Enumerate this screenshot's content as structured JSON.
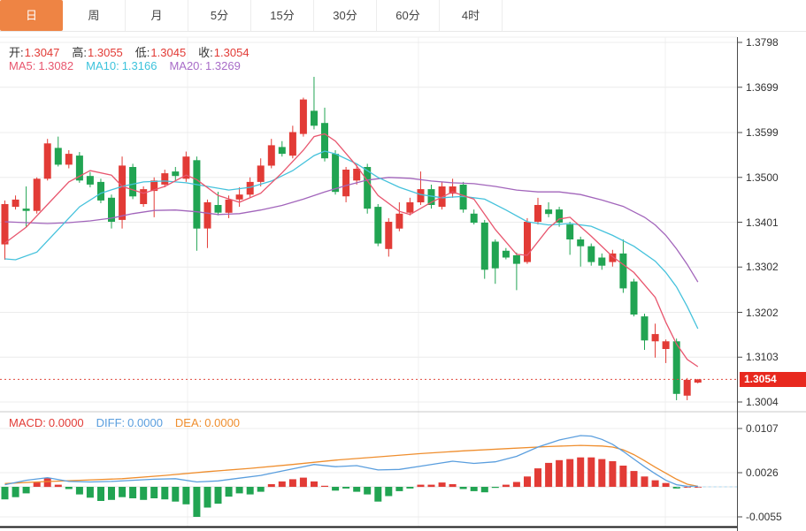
{
  "tabs": {
    "items": [
      {
        "key": "daily",
        "label": "日",
        "active": true
      },
      {
        "key": "weekly",
        "label": "周",
        "active": false
      },
      {
        "key": "monthly",
        "label": "月",
        "active": false
      },
      {
        "key": "5min",
        "label": "5分",
        "active": false
      },
      {
        "key": "15min",
        "label": "15分",
        "active": false
      },
      {
        "key": "30min",
        "label": "30分",
        "active": false
      },
      {
        "key": "60min",
        "label": "60分",
        "active": false
      },
      {
        "key": "4hour",
        "label": "4时",
        "active": false
      }
    ]
  },
  "legend_ohlc": {
    "items": [
      {
        "label": "开:",
        "value": "1.3047"
      },
      {
        "label": "高:",
        "value": "1.3055"
      },
      {
        "label": "低:",
        "value": "1.3045"
      },
      {
        "label": "收:",
        "value": "1.3054"
      }
    ]
  },
  "legend_ma": {
    "items": [
      {
        "label": "MA5:",
        "value": "1.3082",
        "color": "#e8566e"
      },
      {
        "label": "MA10:",
        "value": "1.3166",
        "color": "#3cc3dc"
      },
      {
        "label": "MA20:",
        "value": "1.3269",
        "color": "#a86cc8"
      }
    ]
  },
  "legend_macd": {
    "items": [
      {
        "label": "MACD:",
        "value": "0.0000",
        "color": "#e23b36"
      },
      {
        "label": "DIFF:",
        "value": "0.0000",
        "color": "#5a9ede"
      },
      {
        "label": "DEA:",
        "value": "0.0000",
        "color": "#ef8e2e"
      }
    ]
  },
  "price_marker": {
    "value": "1.3054",
    "price": 1.3054
  },
  "colors": {
    "up": "#e23b36",
    "down": "#21a452",
    "tab_active_bg": "#ee8444",
    "marker_bg": "#e8281e",
    "dotted_line": "#e0493f",
    "grid": "#ececec",
    "grid_vertical": "#f1f1f1",
    "axis_line": "#4a4a4a",
    "bottom_line": "#1a1a1a",
    "ma5": "#e8566e",
    "ma10": "#45c2dc",
    "ma20": "#a265bb",
    "diff": "#5a9ede",
    "dea": "#ef8e2e",
    "zero_dash": "#a9d7ef",
    "separator": "#c9c9c9"
  },
  "chart_data": {
    "type": "candlestick+macd",
    "title": "",
    "main_panel": {
      "y_axis_labels": [
        "1.3798",
        "1.3699",
        "1.3599",
        "1.3500",
        "1.3401",
        "1.3302",
        "1.3202",
        "1.3103",
        "1.3004"
      ],
      "axis_map": {
        "p_top": 1.3798,
        "y_top": 48,
        "p_bot": 1.3004,
        "y_bot": 455
      },
      "ylim": [
        1.2985,
        1.381
      ],
      "grid": true,
      "vertical_gridlines_x": [
        212,
        473,
        752
      ],
      "current_price": 1.3054,
      "candles_ohlc": [
        [
          1.3352,
          1.3449,
          1.3318,
          1.3441
        ],
        [
          1.3435,
          1.346,
          1.3429,
          1.3451
        ],
        [
          1.3431,
          1.348,
          1.3391,
          1.3426
        ],
        [
          1.3426,
          1.35,
          1.342,
          1.3497
        ],
        [
          1.3497,
          1.3585,
          1.3493,
          1.3575
        ],
        [
          1.3565,
          1.359,
          1.3524,
          1.3528
        ],
        [
          1.3528,
          1.356,
          1.352,
          1.3552
        ],
        [
          1.3548,
          1.3556,
          1.3488,
          1.3493
        ],
        [
          1.3503,
          1.3512,
          1.3478,
          1.3484
        ],
        [
          1.349,
          1.3497,
          1.3443,
          1.3449
        ],
        [
          1.3455,
          1.3462,
          1.3387,
          1.3402
        ],
        [
          1.3406,
          1.3546,
          1.3387,
          1.3526
        ],
        [
          1.3523,
          1.353,
          1.3452,
          1.3458
        ],
        [
          1.3441,
          1.348,
          1.3435,
          1.3474
        ],
        [
          1.347,
          1.35,
          1.3412,
          1.3493
        ],
        [
          1.3484,
          1.3517,
          1.3478,
          1.3509
        ],
        [
          1.3513,
          1.3523,
          1.3493,
          1.3503
        ],
        [
          1.3497,
          1.3557,
          1.349,
          1.3546
        ],
        [
          1.3538,
          1.3546,
          1.3338,
          1.3387
        ],
        [
          1.3387,
          1.3451,
          1.3344,
          1.3445
        ],
        [
          1.3439,
          1.3468,
          1.3416,
          1.3422
        ],
        [
          1.3422,
          1.346,
          1.341,
          1.3451
        ],
        [
          1.3451,
          1.3478,
          1.3435,
          1.3462
        ],
        [
          1.3462,
          1.35,
          1.3455,
          1.349
        ],
        [
          1.349,
          1.3542,
          1.348,
          1.3526
        ],
        [
          1.3526,
          1.3585,
          1.352,
          1.3571
        ],
        [
          1.3567,
          1.358,
          1.3546,
          1.3552
        ],
        [
          1.3548,
          1.3614,
          1.3542,
          1.36
        ],
        [
          1.3596,
          1.3676,
          1.359,
          1.3672
        ],
        [
          1.3647,
          1.3722,
          1.3606,
          1.3614
        ],
        [
          1.362,
          1.3654,
          1.3535,
          1.3542
        ],
        [
          1.3552,
          1.356,
          1.3462,
          1.3468
        ],
        [
          1.3458,
          1.3523,
          1.3445,
          1.3517
        ],
        [
          1.3493,
          1.3528,
          1.3484,
          1.3519
        ],
        [
          1.3523,
          1.353,
          1.342,
          1.3431
        ],
        [
          1.3435,
          1.3441,
          1.3348,
          1.3354
        ],
        [
          1.3342,
          1.341,
          1.3325,
          1.3402
        ],
        [
          1.3387,
          1.3445,
          1.3381,
          1.342
        ],
        [
          1.3422,
          1.3455,
          1.3416,
          1.3445
        ],
        [
          1.3445,
          1.3513,
          1.3439,
          1.3474
        ],
        [
          1.3474,
          1.3484,
          1.3431,
          1.3439
        ],
        [
          1.3435,
          1.349,
          1.3429,
          1.348
        ],
        [
          1.3464,
          1.3497,
          1.3455,
          1.348
        ],
        [
          1.3484,
          1.349,
          1.3422,
          1.3429
        ],
        [
          1.342,
          1.3429,
          1.3396,
          1.34
        ],
        [
          1.34,
          1.3406,
          1.3276,
          1.3296
        ],
        [
          1.3358,
          1.3363,
          1.3265,
          1.3299
        ],
        [
          1.3338,
          1.3344,
          1.3319,
          1.3323
        ],
        [
          1.3328,
          1.3334,
          1.3251,
          1.3309
        ],
        [
          1.3313,
          1.341,
          1.3309,
          1.3402
        ],
        [
          1.3402,
          1.3455,
          1.3396,
          1.3439
        ],
        [
          1.3429,
          1.3445,
          1.3412,
          1.3419
        ],
        [
          1.3429,
          1.3435,
          1.3391,
          1.34
        ],
        [
          1.3396,
          1.3402,
          1.3329,
          1.3363
        ],
        [
          1.3363,
          1.3369,
          1.3303,
          1.3348
        ],
        [
          1.3348,
          1.3354,
          1.3305,
          1.3313
        ],
        [
          1.3323,
          1.3332,
          1.3296,
          1.3305
        ],
        [
          1.3313,
          1.334,
          1.3303,
          1.3332
        ],
        [
          1.3332,
          1.3363,
          1.3245,
          1.3255
        ],
        [
          1.327,
          1.3276,
          1.3193,
          1.3197
        ],
        [
          1.3193,
          1.3199,
          1.3119,
          1.314
        ],
        [
          1.3138,
          1.3177,
          1.3102,
          1.3154
        ],
        [
          1.3121,
          1.3142,
          1.309,
          1.3138
        ],
        [
          1.3138,
          1.3144,
          1.3008,
          1.3022
        ],
        [
          1.3018,
          1.3057,
          1.3008,
          1.3053
        ],
        [
          1.3047,
          1.3055,
          1.3045,
          1.3054
        ]
      ],
      "ma5_points": [
        [
          1,
          1.3355
        ],
        [
          3,
          1.339
        ],
        [
          5,
          1.344
        ],
        [
          7,
          1.349
        ],
        [
          9,
          1.3515
        ],
        [
          11,
          1.3505
        ],
        [
          12,
          1.348
        ],
        [
          14,
          1.3465
        ],
        [
          16,
          1.348
        ],
        [
          18,
          1.3505
        ],
        [
          19,
          1.3495
        ],
        [
          21,
          1.346
        ],
        [
          23,
          1.3445
        ],
        [
          25,
          1.3465
        ],
        [
          27,
          1.351
        ],
        [
          29,
          1.356
        ],
        [
          30,
          1.359
        ],
        [
          31,
          1.3596
        ],
        [
          32,
          1.358
        ],
        [
          34,
          1.3525
        ],
        [
          36,
          1.346
        ],
        [
          38,
          1.3425
        ],
        [
          39,
          1.3418
        ],
        [
          41,
          1.3445
        ],
        [
          43,
          1.3468
        ],
        [
          45,
          1.3452
        ],
        [
          47,
          1.3385
        ],
        [
          49,
          1.333
        ],
        [
          50,
          1.3328
        ],
        [
          52,
          1.3388
        ],
        [
          53,
          1.3408
        ],
        [
          54,
          1.3412
        ],
        [
          56,
          1.337
        ],
        [
          58,
          1.3325
        ],
        [
          60,
          1.329
        ],
        [
          62,
          1.3235
        ],
        [
          63,
          1.318
        ],
        [
          64,
          1.3132
        ],
        [
          65,
          1.3098
        ],
        [
          66,
          1.3082
        ]
      ],
      "ma10_points": [
        [
          1,
          1.332
        ],
        [
          2,
          1.3318
        ],
        [
          4,
          1.3335
        ],
        [
          6,
          1.3385
        ],
        [
          8,
          1.3435
        ],
        [
          10,
          1.3465
        ],
        [
          12,
          1.348
        ],
        [
          14,
          1.349
        ],
        [
          16,
          1.3492
        ],
        [
          18,
          1.3488
        ],
        [
          20,
          1.348
        ],
        [
          22,
          1.3472
        ],
        [
          24,
          1.3478
        ],
        [
          26,
          1.3492
        ],
        [
          28,
          1.3515
        ],
        [
          30,
          1.3548
        ],
        [
          31,
          1.3558
        ],
        [
          32,
          1.3552
        ],
        [
          34,
          1.353
        ],
        [
          36,
          1.35
        ],
        [
          38,
          1.3478
        ],
        [
          40,
          1.3462
        ],
        [
          42,
          1.3455
        ],
        [
          44,
          1.3458
        ],
        [
          46,
          1.3452
        ],
        [
          48,
          1.3428
        ],
        [
          50,
          1.3402
        ],
        [
          52,
          1.3395
        ],
        [
          54,
          1.3398
        ],
        [
          56,
          1.3392
        ],
        [
          58,
          1.3372
        ],
        [
          60,
          1.3348
        ],
        [
          62,
          1.3315
        ],
        [
          63,
          1.329
        ],
        [
          64,
          1.3258
        ],
        [
          65,
          1.3215
        ],
        [
          66,
          1.3166
        ]
      ],
      "ma20_points": [
        [
          1,
          1.3402
        ],
        [
          3,
          1.34
        ],
        [
          5,
          1.3398
        ],
        [
          7,
          1.34
        ],
        [
          9,
          1.3404
        ],
        [
          11,
          1.341
        ],
        [
          13,
          1.342
        ],
        [
          15,
          1.3427
        ],
        [
          17,
          1.3428
        ],
        [
          19,
          1.3424
        ],
        [
          21,
          1.3418
        ],
        [
          23,
          1.342
        ],
        [
          25,
          1.3428
        ],
        [
          27,
          1.3438
        ],
        [
          29,
          1.3452
        ],
        [
          31,
          1.3468
        ],
        [
          33,
          1.3482
        ],
        [
          35,
          1.3494
        ],
        [
          37,
          1.35
        ],
        [
          39,
          1.3498
        ],
        [
          41,
          1.3492
        ],
        [
          43,
          1.3488
        ],
        [
          45,
          1.3486
        ],
        [
          47,
          1.348
        ],
        [
          49,
          1.3472
        ],
        [
          51,
          1.3468
        ],
        [
          53,
          1.3468
        ],
        [
          55,
          1.3462
        ],
        [
          57,
          1.345
        ],
        [
          59,
          1.3436
        ],
        [
          61,
          1.3412
        ],
        [
          62,
          1.3395
        ],
        [
          63,
          1.3372
        ],
        [
          64,
          1.3342
        ],
        [
          65,
          1.3308
        ],
        [
          66,
          1.3269
        ]
      ]
    },
    "macd_panel": {
      "y_axis_labels": [
        "0.0107",
        "0.0026",
        "-0.0055"
      ],
      "axis_map": {
        "v_top": 0.0107,
        "y_top": 485,
        "v_bot": -0.0055,
        "y_bot": 585
      },
      "histogram": [
        -0.0023,
        -0.0019,
        -0.0012,
        0.0008,
        0.0016,
        0.0004,
        -0.0004,
        -0.0014,
        -0.002,
        -0.0026,
        -0.0024,
        -0.0019,
        -0.0021,
        -0.0024,
        -0.0021,
        -0.0023,
        -0.0027,
        -0.0032,
        -0.0055,
        -0.0038,
        -0.0031,
        -0.0018,
        -0.0012,
        -0.0014,
        -0.0009,
        0.0005,
        0.001,
        0.0014,
        0.0017,
        0.001,
        0.0002,
        -0.0007,
        -0.0003,
        -0.0009,
        -0.0014,
        -0.0027,
        -0.0017,
        -0.0008,
        -0.0003,
        0.0004,
        0.0004,
        0.0008,
        0.0005,
        -0.0004,
        -0.0008,
        -0.001,
        -0.0002,
        0.0004,
        0.0009,
        0.0019,
        0.0034,
        0.0044,
        0.0049,
        0.0051,
        0.0054,
        0.0054,
        0.0051,
        0.0047,
        0.0039,
        0.0029,
        0.0019,
        0.0012,
        0.0007,
        -0.0003,
        0.0,
        0.0
      ],
      "diff_points": [
        [
          1,
          0.0004
        ],
        [
          3,
          0.0012
        ],
        [
          5,
          0.0017
        ],
        [
          7,
          0.001
        ],
        [
          9,
          0.0009
        ],
        [
          11,
          0.001
        ],
        [
          13,
          0.0012
        ],
        [
          15,
          0.0014
        ],
        [
          17,
          0.0015
        ],
        [
          19,
          0.0009
        ],
        [
          21,
          0.0011
        ],
        [
          23,
          0.0016
        ],
        [
          25,
          0.0021
        ],
        [
          27,
          0.0029
        ],
        [
          29,
          0.0037
        ],
        [
          30,
          0.0041
        ],
        [
          32,
          0.0037
        ],
        [
          34,
          0.0039
        ],
        [
          36,
          0.0031
        ],
        [
          38,
          0.0032
        ],
        [
          40,
          0.0038
        ],
        [
          42,
          0.0044
        ],
        [
          43,
          0.0047
        ],
        [
          45,
          0.0043
        ],
        [
          47,
          0.0046
        ],
        [
          49,
          0.0056
        ],
        [
          51,
          0.0073
        ],
        [
          53,
          0.0086
        ],
        [
          55,
          0.0094
        ],
        [
          56,
          0.0093
        ],
        [
          57,
          0.0087
        ],
        [
          58,
          0.0078
        ],
        [
          59,
          0.0065
        ],
        [
          60,
          0.0051
        ],
        [
          61,
          0.0037
        ],
        [
          62,
          0.0024
        ],
        [
          63,
          0.0012
        ],
        [
          64,
          0.0004
        ],
        [
          65,
          0.0001
        ],
        [
          66,
          0.0001
        ]
      ],
      "dea_points": [
        [
          1,
          0.0006
        ],
        [
          4,
          0.0009
        ],
        [
          8,
          0.0012
        ],
        [
          12,
          0.0015
        ],
        [
          16,
          0.0021
        ],
        [
          20,
          0.0028
        ],
        [
          24,
          0.0034
        ],
        [
          28,
          0.0041
        ],
        [
          32,
          0.0049
        ],
        [
          36,
          0.0055
        ],
        [
          40,
          0.0061
        ],
        [
          44,
          0.0066
        ],
        [
          48,
          0.007
        ],
        [
          52,
          0.0074
        ],
        [
          55,
          0.0076
        ],
        [
          57,
          0.0075
        ],
        [
          58,
          0.0073
        ],
        [
          59,
          0.0068
        ],
        [
          60,
          0.0059
        ],
        [
          61,
          0.0048
        ],
        [
          62,
          0.0036
        ],
        [
          63,
          0.0025
        ],
        [
          64,
          0.0014
        ],
        [
          65,
          0.0005
        ],
        [
          66,
          0.0001
        ]
      ]
    },
    "layout": {
      "x_first_candle": 5.5,
      "x_step": 12.05,
      "plot_right": 833,
      "tab_height": 35,
      "separator_y": 466,
      "bottom_y": 596,
      "marker_y_height": 17
    }
  }
}
